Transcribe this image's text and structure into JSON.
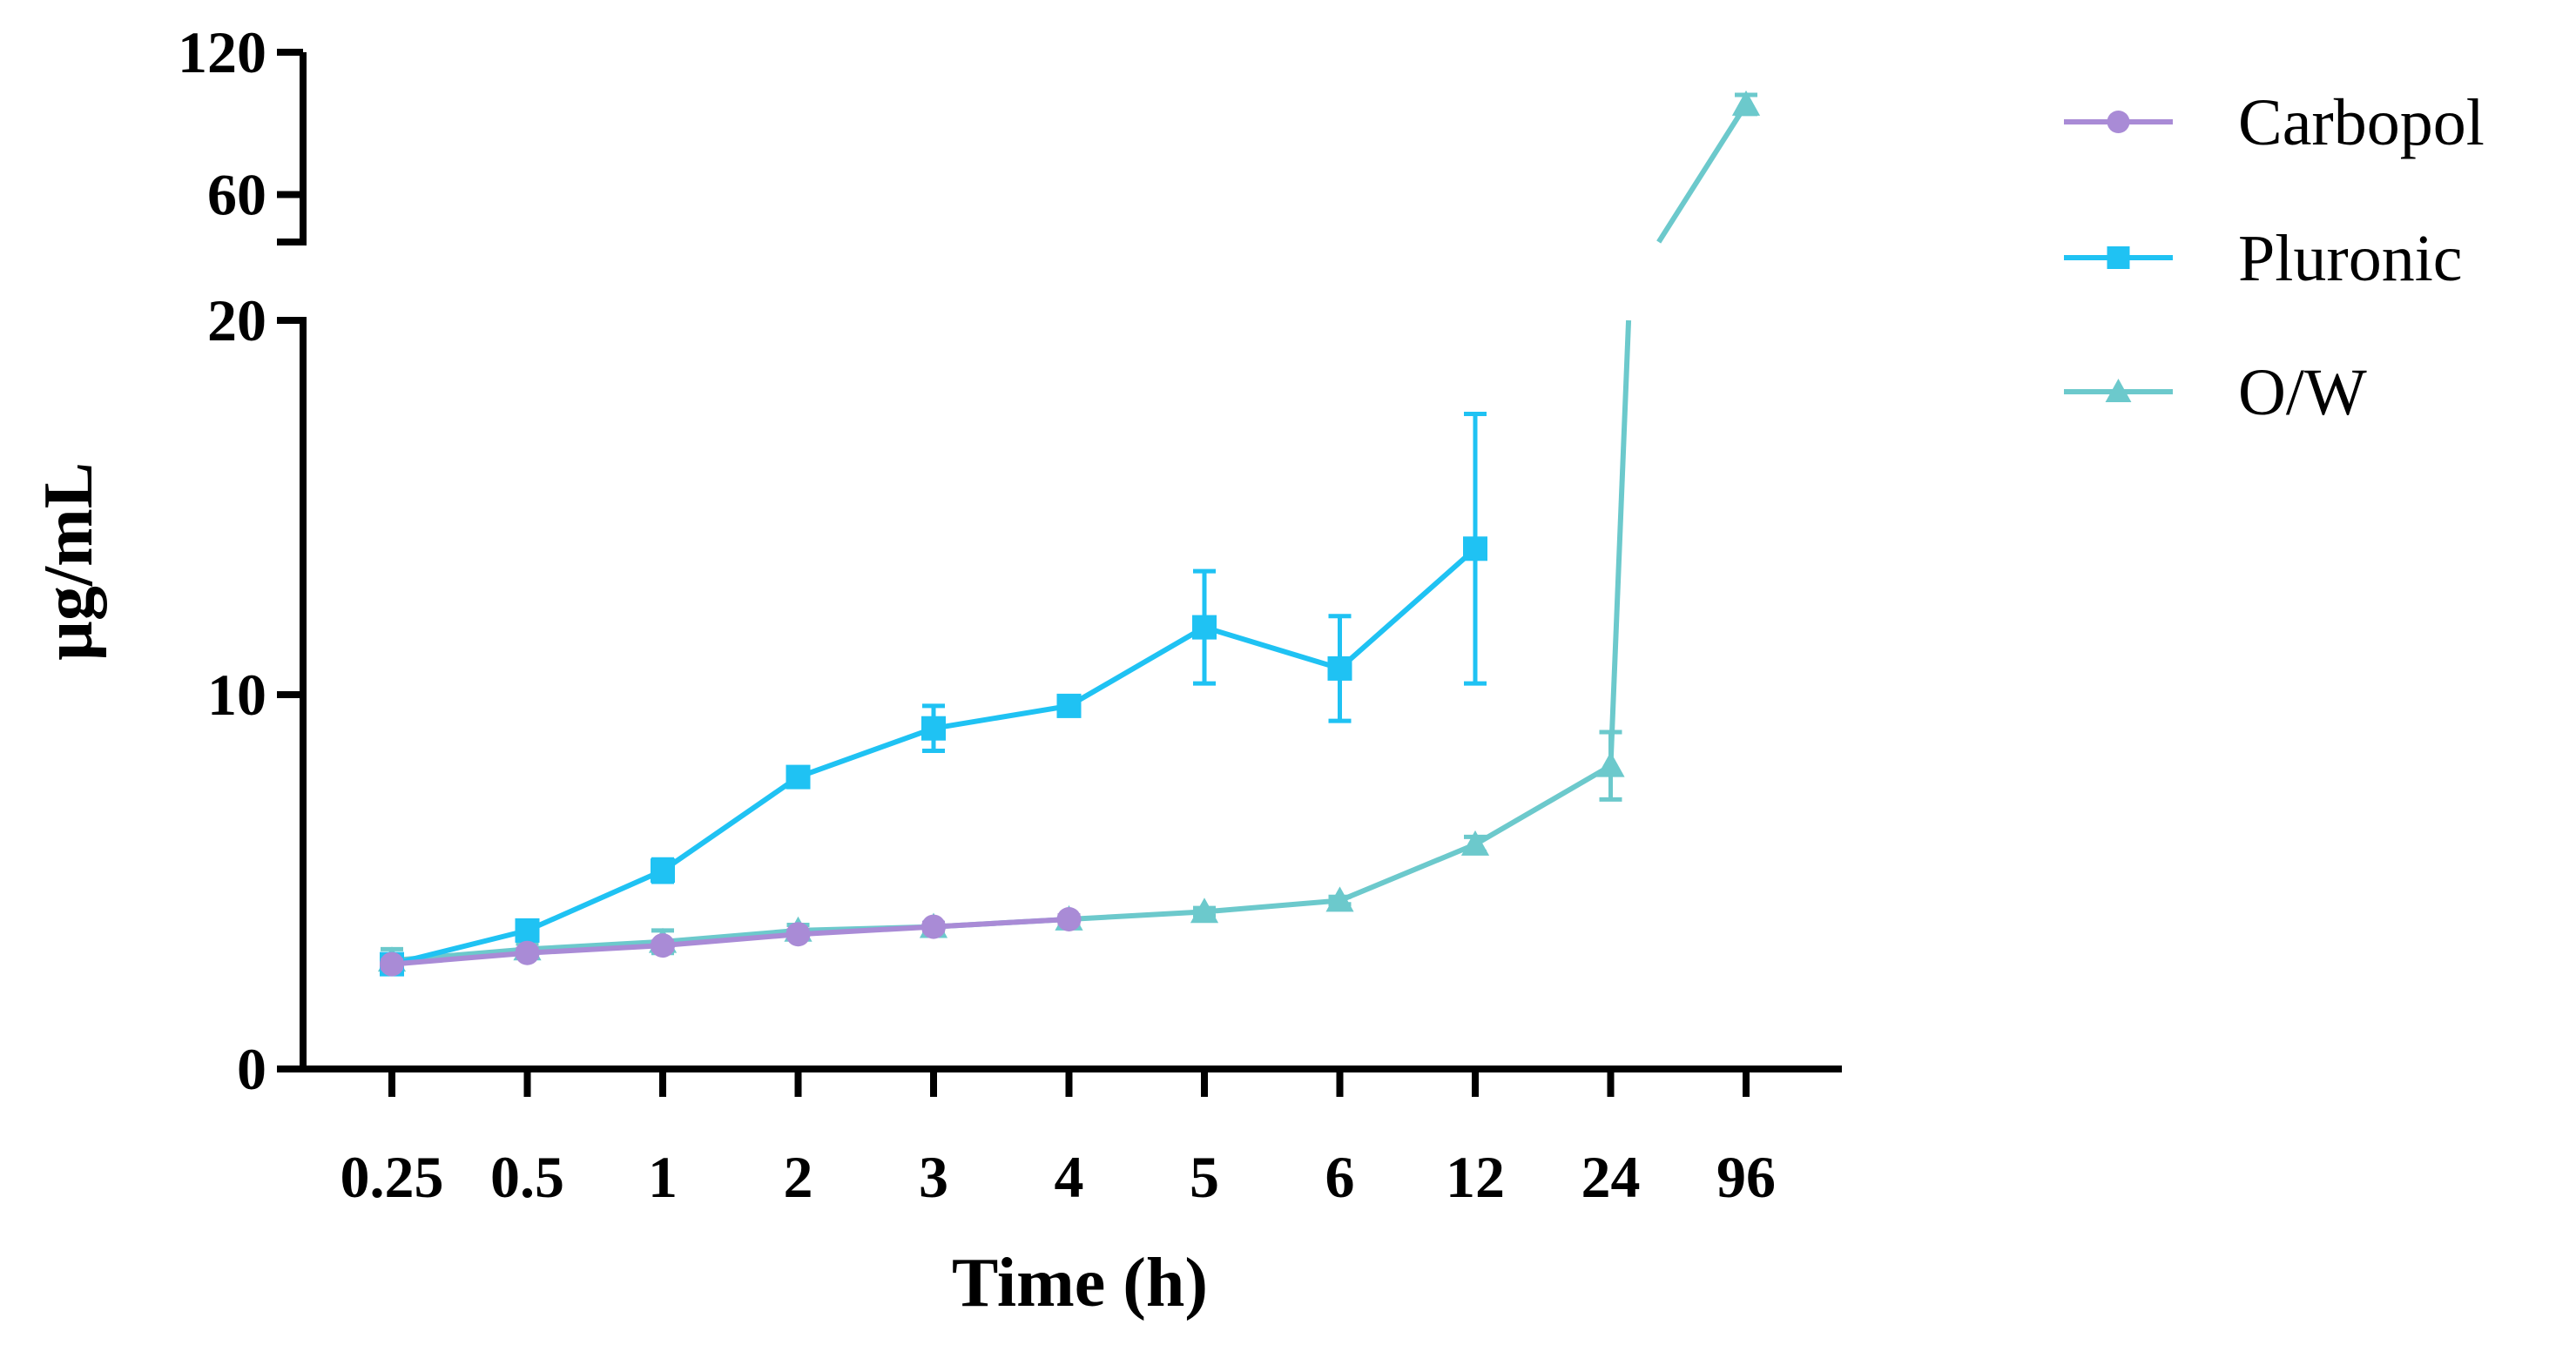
{
  "chart_data": {
    "type": "line",
    "title": "",
    "xlabel": "Time (h)",
    "ylabel": "µg/mL",
    "categories": [
      "0.25",
      "0.5",
      "1",
      "2",
      "3",
      "4",
      "5",
      "6",
      "12",
      "24",
      "96"
    ],
    "y_axis_segments": [
      {
        "range": [
          0,
          20
        ],
        "ticks": [
          "0",
          "10",
          "20"
        ]
      },
      {
        "range": [
          40,
          120
        ],
        "ticks": [
          "60",
          "120"
        ]
      }
    ],
    "legend_position": "top-right",
    "series": [
      {
        "name": "Carbopol",
        "color": "#a98bd6",
        "marker": "circle",
        "values": [
          2.8,
          3.1,
          3.3,
          3.6,
          3.8,
          4.0,
          null,
          null,
          null,
          null,
          null
        ],
        "errors": [
          0.1,
          0.1,
          0.1,
          0.1,
          0.1,
          0.1,
          null,
          null,
          null,
          null,
          null
        ]
      },
      {
        "name": "Pluronic",
        "color": "#1fc2f3",
        "marker": "square",
        "values": [
          2.8,
          3.7,
          5.3,
          7.8,
          9.1,
          9.7,
          11.8,
          10.7,
          13.9,
          null,
          null
        ],
        "errors": [
          0.1,
          0.15,
          0.3,
          0.2,
          0.6,
          0.1,
          1.5,
          1.4,
          3.6,
          null,
          null
        ]
      },
      {
        "name": "O/W",
        "color": "#6cc9cc",
        "marker": "triangle",
        "values": [
          2.9,
          3.2,
          3.4,
          3.7,
          3.8,
          4.0,
          4.2,
          4.5,
          6.0,
          8.1,
          98
        ],
        "errors": [
          0.3,
          0.15,
          0.3,
          0.15,
          0.1,
          0.1,
          0.1,
          0.1,
          0.2,
          0.9,
          4
        ]
      }
    ]
  }
}
